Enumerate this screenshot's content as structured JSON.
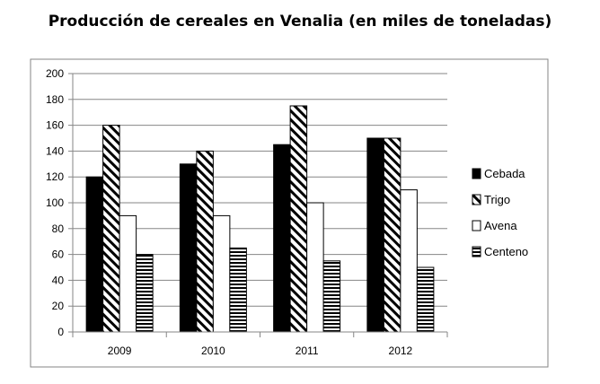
{
  "chart_data": {
    "type": "bar",
    "title": "Producción de cereales en Venalia (en miles de toneladas)",
    "xlabel": "",
    "ylabel": "",
    "categories": [
      "2009",
      "2010",
      "2011",
      "2012"
    ],
    "series": [
      {
        "name": "Cebada",
        "values": [
          120,
          130,
          145,
          150
        ],
        "fill": "solid-black"
      },
      {
        "name": "Trigo",
        "values": [
          160,
          140,
          175,
          150
        ],
        "fill": "diagonal-stripes"
      },
      {
        "name": "Avena",
        "values": [
          90,
          90,
          100,
          110
        ],
        "fill": "white"
      },
      {
        "name": "Centeno",
        "values": [
          60,
          65,
          55,
          50
        ],
        "fill": "horizontal-stripes"
      }
    ],
    "ylim": [
      0,
      200
    ],
    "yticks": [
      0,
      20,
      40,
      60,
      80,
      100,
      120,
      140,
      160,
      180,
      200
    ],
    "grid": true,
    "legend_position": "right"
  }
}
